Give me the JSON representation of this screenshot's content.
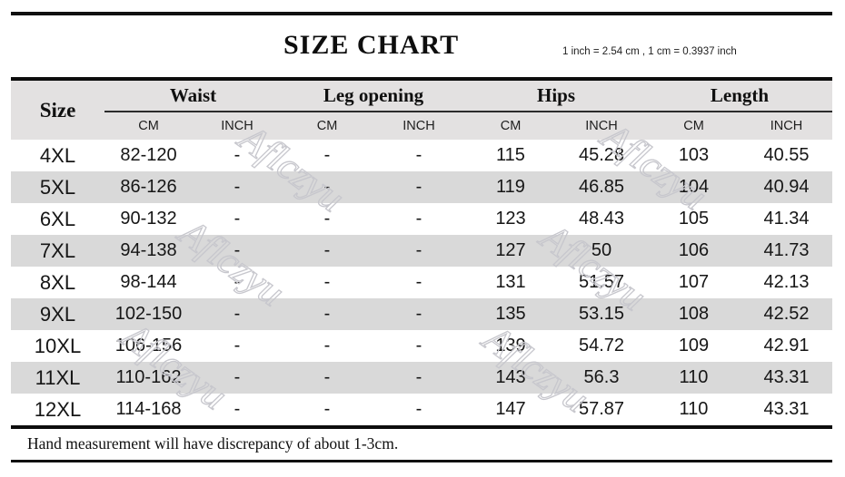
{
  "header": {
    "title": "SIZE CHART",
    "conversion_note": "1 inch = 2.54 cm , 1 cm = 0.3937 inch"
  },
  "table": {
    "size_label": "Size",
    "groups": [
      {
        "label": "Waist"
      },
      {
        "label": "Leg opening"
      },
      {
        "label": "Hips"
      },
      {
        "label": "Length"
      }
    ],
    "sub_headers": [
      "CM",
      "INCH"
    ],
    "rows": [
      {
        "size": "4XL",
        "waist_cm": "82-120",
        "waist_inch": "-",
        "leg_cm": "-",
        "leg_inch": "-",
        "hips_cm": "115",
        "hips_inch": "45.28",
        "length_cm": "103",
        "length_inch": "40.55"
      },
      {
        "size": "5XL",
        "waist_cm": "86-126",
        "waist_inch": "-",
        "leg_cm": "-",
        "leg_inch": "-",
        "hips_cm": "119",
        "hips_inch": "46.85",
        "length_cm": "104",
        "length_inch": "40.94"
      },
      {
        "size": "6XL",
        "waist_cm": "90-132",
        "waist_inch": "-",
        "leg_cm": "-",
        "leg_inch": "-",
        "hips_cm": "123",
        "hips_inch": "48.43",
        "length_cm": "105",
        "length_inch": "41.34"
      },
      {
        "size": "7XL",
        "waist_cm": "94-138",
        "waist_inch": "-",
        "leg_cm": "-",
        "leg_inch": "-",
        "hips_cm": "127",
        "hips_inch": "50",
        "length_cm": "106",
        "length_inch": "41.73"
      },
      {
        "size": "8XL",
        "waist_cm": "98-144",
        "waist_inch": "-",
        "leg_cm": "-",
        "leg_inch": "-",
        "hips_cm": "131",
        "hips_inch": "51.57",
        "length_cm": "107",
        "length_inch": "42.13"
      },
      {
        "size": "9XL",
        "waist_cm": "102-150",
        "waist_inch": "-",
        "leg_cm": "-",
        "leg_inch": "-",
        "hips_cm": "135",
        "hips_inch": "53.15",
        "length_cm": "108",
        "length_inch": "42.52"
      },
      {
        "size": "10XL",
        "waist_cm": "106-156",
        "waist_inch": "-",
        "leg_cm": "-",
        "leg_inch": "-",
        "hips_cm": "139",
        "hips_inch": "54.72",
        "length_cm": "109",
        "length_inch": "42.91"
      },
      {
        "size": "11XL",
        "waist_cm": "110-162",
        "waist_inch": "-",
        "leg_cm": "-",
        "leg_inch": "-",
        "hips_cm": "143",
        "hips_inch": "56.3",
        "length_cm": "110",
        "length_inch": "43.31"
      },
      {
        "size": "12XL",
        "waist_cm": "114-168",
        "waist_inch": "-",
        "leg_cm": "-",
        "leg_inch": "-",
        "hips_cm": "147",
        "hips_inch": "57.87",
        "length_cm": "110",
        "length_inch": "43.31"
      }
    ]
  },
  "footer": {
    "note": "Hand measurement will have discrepancy of about 1-3cm."
  },
  "watermark": {
    "text": "Aflczyu"
  },
  "colors": {
    "stripe": "#d9d9d9",
    "header_bg": "#e3e1e1",
    "rule": "#101010",
    "watermark": "#c7c7cd",
    "text": "#161616"
  }
}
